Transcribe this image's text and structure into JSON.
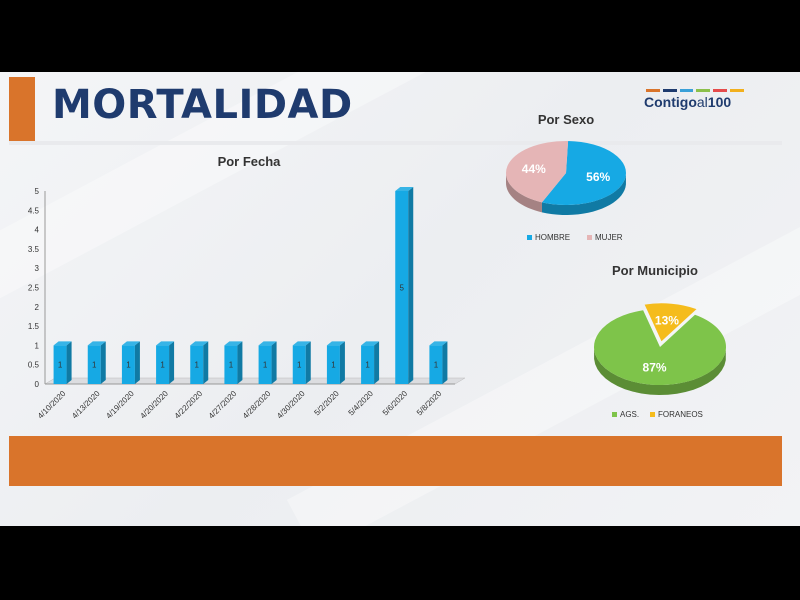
{
  "title": "MORTALIDAD",
  "logo": {
    "text_main": "Contigo",
    "text_al": "al",
    "text_num": "100",
    "dash_colors": [
      "#d9742b",
      "#1f3b6e",
      "#3aa0d8",
      "#8cc04b",
      "#e54b4b",
      "#f2b01e"
    ]
  },
  "colors": {
    "accent": "#d9742b",
    "title": "#1f3b6e",
    "bar": "#16a9e4",
    "hombre": "#16a9e4",
    "mujer": "#e5b5b6",
    "ags": "#7ec44a",
    "foraneos": "#f5bc1c"
  },
  "chart_data": [
    {
      "type": "bar",
      "title": "Por Fecha",
      "categories": [
        "4/10/2020",
        "4/13/2020",
        "4/19/2020",
        "4/20/2020",
        "4/22/2020",
        "4/27/2020",
        "4/28/2020",
        "4/30/2020",
        "5/2/2020",
        "5/4/2020",
        "5/6/2020",
        "5/8/2020"
      ],
      "values": [
        1,
        1,
        1,
        1,
        1,
        1,
        1,
        1,
        1,
        1,
        5,
        1
      ],
      "data_labels": [
        "1",
        "1",
        "1",
        "1",
        "1",
        "1",
        "1",
        "1",
        "1",
        "1",
        "5",
        "1"
      ],
      "ylim": [
        0,
        5
      ],
      "yticks": [
        "0",
        "0.5",
        "1",
        "1.5",
        "2",
        "2.5",
        "3",
        "3.5",
        "4",
        "4.5",
        "5"
      ],
      "grid": false
    },
    {
      "type": "pie",
      "title": "Por Sexo",
      "labels": [
        "HOMBRE",
        "MUJER"
      ],
      "values": [
        56,
        44
      ],
      "data_labels": [
        "56%",
        "44%"
      ],
      "legend": "bottom"
    },
    {
      "type": "pie",
      "title": "Por Municipio",
      "labels": [
        "AGS.",
        "FORANEOS"
      ],
      "values": [
        87,
        13
      ],
      "data_labels": [
        "87%",
        "13%"
      ],
      "legend": "bottom"
    }
  ]
}
